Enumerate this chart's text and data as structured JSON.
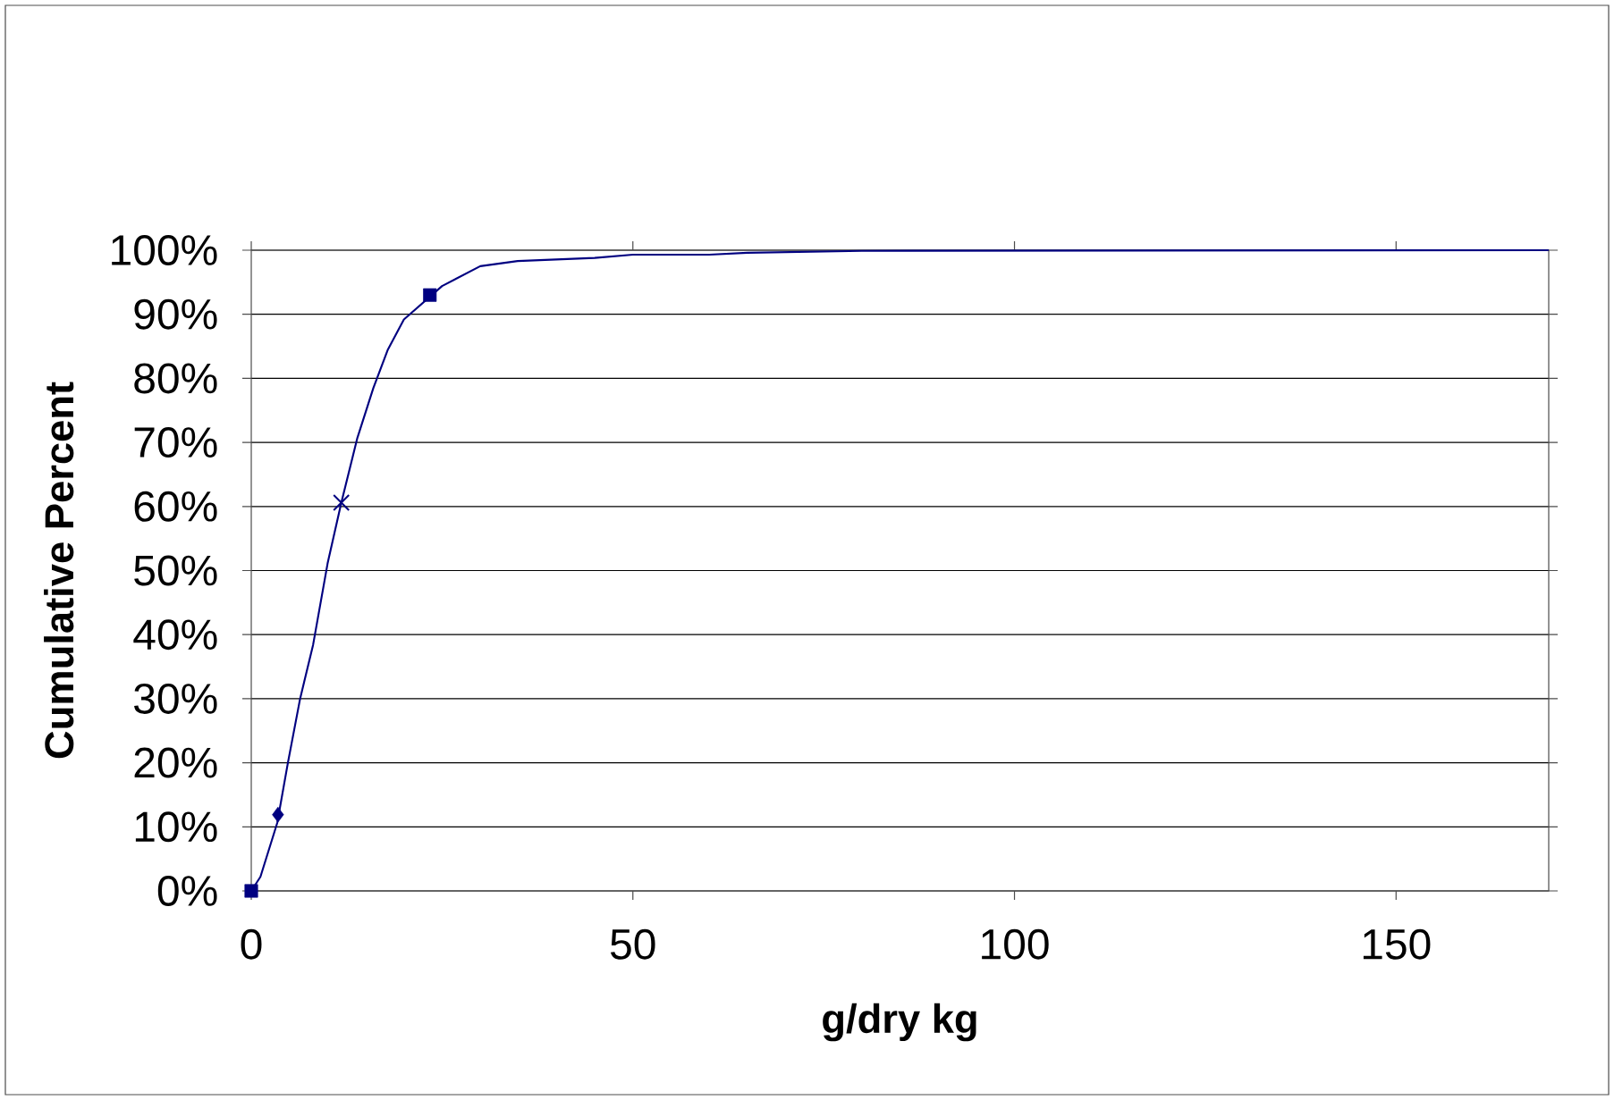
{
  "chart_data": {
    "type": "line",
    "xlabel": "g/dry kg",
    "ylabel": "Cumulative Percent",
    "xlim": [
      0,
      170
    ],
    "xticks": [
      0,
      50,
      100,
      150
    ],
    "ylim": [
      0,
      100
    ],
    "yticks": [
      {
        "value": 0,
        "label": "0%"
      },
      {
        "value": 10,
        "label": "10%"
      },
      {
        "value": 20,
        "label": "20%"
      },
      {
        "value": 30,
        "label": "30%"
      },
      {
        "value": 40,
        "label": "40%"
      },
      {
        "value": 50,
        "label": "50%"
      },
      {
        "value": 60,
        "label": "60%"
      },
      {
        "value": 70,
        "label": "70%"
      },
      {
        "value": 80,
        "label": "80%"
      },
      {
        "value": 90,
        "label": "90%"
      },
      {
        "value": 100,
        "label": "100%"
      }
    ],
    "grid": "y",
    "marker": "none",
    "series": [
      {
        "color": "#000080",
        "x": [
          0,
          1.2,
          3.4,
          4.8,
          6.4,
          8.1,
          10.0,
          11.8,
          13.9,
          16.0,
          17.9,
          20.0,
          25.0,
          30.0,
          34.9,
          45.0,
          50,
          60,
          65,
          80,
          170
        ],
        "values": [
          0,
          2.2,
          10.6,
          20,
          30,
          38.4,
          51.1,
          60.6,
          70.7,
          78.5,
          84.5,
          89.2,
          94.4,
          97.5,
          98.3,
          98.8,
          99.3,
          99.3,
          99.6,
          99.9,
          100
        ]
      },
      {
        "type": "scatter",
        "color": "#000080",
        "marker": "square",
        "x": [
          0
        ],
        "values": [
          0
        ]
      },
      {
        "type": "scatter",
        "color": "#000080",
        "marker": "diamond",
        "x": [
          3.5
        ],
        "values": [
          11.9
        ]
      },
      {
        "type": "scatter",
        "color": "#000080",
        "marker": "cross",
        "x": [
          11.8
        ],
        "values": [
          60.6
        ]
      },
      {
        "type": "scatter",
        "color": "#000080",
        "marker": "square",
        "x": [
          23.4
        ],
        "values": [
          93.0
        ]
      }
    ]
  }
}
